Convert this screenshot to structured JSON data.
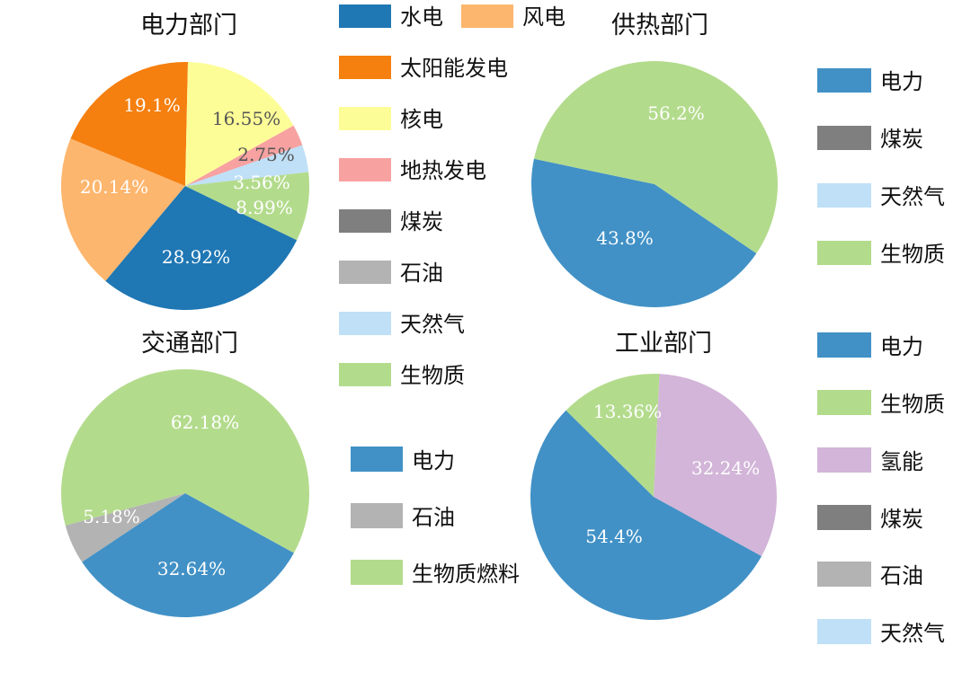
{
  "chart_data": [
    {
      "type": "pie",
      "title": "电力部门",
      "categories": [
        "水电",
        "风电",
        "太阳能发电",
        "核电",
        "地热发电",
        "煤炭",
        "石油",
        "天然气",
        "生物质"
      ],
      "values": [
        28.92,
        20.14,
        19.1,
        16.55,
        2.75,
        0,
        0,
        3.56,
        8.99
      ],
      "value_labels": [
        "28.92%",
        "20.14%",
        "19.1%",
        "16.55%",
        "2.75%",
        "",
        "",
        "3.56%",
        "8.99%"
      ],
      "colors": [
        "#1f77b4",
        "#fdb66e",
        "#f57f0f",
        "#fdfd98",
        "#f7a1a1",
        "#7f7f7f",
        "#b3b3b3",
        "#bfe0f7",
        "#b3db8c"
      ],
      "legend_position": "right"
    },
    {
      "type": "pie",
      "title": "供热部门",
      "categories": [
        "电力",
        "煤炭",
        "天然气",
        "生物质"
      ],
      "values": [
        43.8,
        0,
        0,
        56.2
      ],
      "value_labels": [
        "43.8%",
        "",
        "",
        "56.2%"
      ],
      "colors": [
        "#4191c6",
        "#7f7f7f",
        "#bfe0f7",
        "#b3db8c"
      ],
      "legend_position": "right"
    },
    {
      "type": "pie",
      "title": "交通部门",
      "categories": [
        "电力",
        "石油",
        "生物质燃料"
      ],
      "values": [
        32.64,
        5.18,
        62.18
      ],
      "value_labels": [
        "32.64%",
        "5.18%",
        "62.18%"
      ],
      "colors": [
        "#4191c6",
        "#b3b3b3",
        "#b3db8c"
      ],
      "legend_position": "right"
    },
    {
      "type": "pie",
      "title": "工业部门",
      "categories": [
        "电力",
        "生物质",
        "氢能",
        "煤炭",
        "石油",
        "天然气"
      ],
      "values": [
        54.4,
        13.36,
        32.24,
        0,
        0,
        0
      ],
      "value_labels": [
        "54.4%",
        "13.36%",
        "32.24%",
        "",
        "",
        ""
      ],
      "colors": [
        "#4191c6",
        "#b3db8c",
        "#d2b5d8",
        "#7f7f7f",
        "#b3b3b3",
        "#bfe0f7"
      ],
      "legend_position": "right"
    }
  ]
}
